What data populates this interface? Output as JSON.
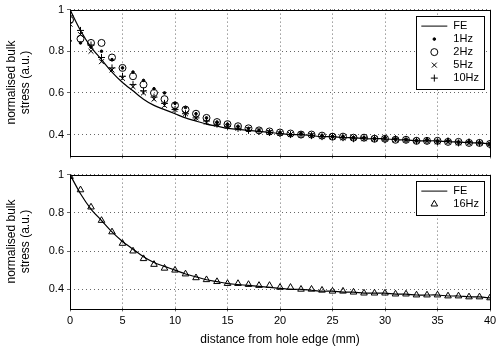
{
  "chart_data": [
    {
      "type": "scatter",
      "ylabel": "normalised bulk stress (a.u.)",
      "x": [
        0,
        1,
        2,
        3,
        4,
        5,
        6,
        7,
        8,
        9,
        10,
        11,
        12,
        13,
        14,
        15,
        16,
        17,
        18,
        19,
        20,
        21,
        22,
        23,
        24,
        25,
        26,
        27,
        28,
        29,
        30,
        31,
        32,
        33,
        34,
        35,
        36,
        37,
        38,
        39,
        40
      ],
      "series": [
        {
          "name": "FE",
          "type": "line",
          "color": "#000000",
          "line_style": "solid",
          "values": [
            1.0,
            0.9,
            0.82,
            0.76,
            0.7,
            0.65,
            0.61,
            0.57,
            0.54,
            0.52,
            0.5,
            0.48,
            0.465,
            0.45,
            0.44,
            0.43,
            0.425,
            0.42,
            0.415,
            0.41,
            0.405,
            0.4,
            0.4,
            0.395,
            0.39,
            0.39,
            0.385,
            0.385,
            0.38,
            0.38,
            0.38,
            0.375,
            0.375,
            0.37,
            0.37,
            0.37,
            0.365,
            0.365,
            0.36,
            0.36,
            0.355
          ]
        },
        {
          "name": "1Hz",
          "type": "scatter",
          "color": "#000000",
          "marker": "dot",
          "values": [
            0.85,
            0.84,
            0.82,
            0.8,
            0.76,
            0.72,
            0.7,
            0.66,
            0.62,
            0.6,
            0.55,
            0.53,
            0.5,
            0.48,
            0.46,
            0.45,
            0.44,
            0.43,
            0.42,
            0.415,
            0.41,
            0.4,
            0.405,
            0.4,
            0.395,
            0.39,
            0.39,
            0.385,
            0.385,
            0.38,
            0.385,
            0.38,
            0.375,
            0.37,
            0.375,
            0.37,
            0.37,
            0.365,
            0.365,
            0.36,
            0.355
          ]
        },
        {
          "name": "2Hz",
          "type": "scatter",
          "color": "#000000",
          "marker": "circle",
          "values": [
            0.95,
            0.86,
            0.84,
            0.84,
            0.77,
            0.72,
            0.68,
            0.64,
            0.6,
            0.57,
            0.54,
            0.52,
            0.5,
            0.48,
            0.46,
            0.45,
            0.44,
            0.43,
            0.42,
            0.415,
            0.41,
            0.405,
            0.4,
            0.4,
            0.395,
            0.39,
            0.39,
            0.385,
            0.385,
            0.38,
            0.38,
            0.375,
            0.375,
            0.37,
            0.37,
            0.37,
            0.365,
            0.365,
            0.36,
            0.36,
            0.355
          ]
        },
        {
          "name": "5Hz",
          "type": "scatter",
          "color": "#000000",
          "marker": "x",
          "values": [
            0.93,
            0.88,
            0.8,
            0.75,
            0.71,
            0.67,
            0.63,
            0.6,
            0.57,
            0.54,
            0.52,
            0.5,
            0.48,
            0.46,
            0.45,
            0.44,
            0.43,
            0.425,
            0.42,
            0.41,
            0.405,
            0.4,
            0.4,
            0.395,
            0.39,
            0.39,
            0.385,
            0.385,
            0.38,
            0.38,
            0.38,
            0.375,
            0.375,
            0.37,
            0.37,
            0.365,
            0.365,
            0.36,
            0.36,
            0.36,
            0.355
          ]
        },
        {
          "name": "10Hz",
          "type": "scatter",
          "color": "#000000",
          "marker": "plus",
          "values": [
            0.97,
            0.9,
            0.83,
            0.77,
            0.72,
            0.68,
            0.64,
            0.61,
            0.58,
            0.55,
            0.52,
            0.5,
            0.48,
            0.465,
            0.45,
            0.44,
            0.43,
            0.42,
            0.415,
            0.41,
            0.405,
            0.4,
            0.4,
            0.395,
            0.39,
            0.39,
            0.385,
            0.38,
            0.385,
            0.38,
            0.375,
            0.38,
            0.375,
            0.37,
            0.37,
            0.365,
            0.37,
            0.36,
            0.365,
            0.36,
            0.35
          ]
        }
      ],
      "xlim": [
        0,
        40
      ],
      "xticks": [
        0,
        5,
        10,
        15,
        20,
        25,
        30,
        35,
        40
      ],
      "ylim": [
        0.3,
        1
      ],
      "yticks": [
        0.4,
        0.6,
        0.8,
        1
      ],
      "grid": true,
      "legend": "upper right",
      "tick_labels": "y"
    },
    {
      "type": "scatter",
      "xlabel": "distance from hole edge (mm)",
      "ylabel": "normalised bulk stress (a.u.)",
      "x": [
        0,
        1,
        2,
        3,
        4,
        5,
        6,
        7,
        8,
        9,
        10,
        11,
        12,
        13,
        14,
        15,
        16,
        17,
        18,
        19,
        20,
        21,
        22,
        23,
        24,
        25,
        26,
        27,
        28,
        29,
        30,
        31,
        32,
        33,
        34,
        35,
        36,
        37,
        38,
        39,
        40
      ],
      "series": [
        {
          "name": "FE",
          "type": "line",
          "color": "#000000",
          "line_style": "solid",
          "values": [
            1.0,
            0.9,
            0.82,
            0.76,
            0.7,
            0.65,
            0.61,
            0.57,
            0.54,
            0.52,
            0.5,
            0.48,
            0.465,
            0.45,
            0.44,
            0.43,
            0.425,
            0.42,
            0.415,
            0.41,
            0.405,
            0.4,
            0.4,
            0.395,
            0.39,
            0.39,
            0.385,
            0.385,
            0.38,
            0.38,
            0.38,
            0.375,
            0.375,
            0.37,
            0.37,
            0.37,
            0.365,
            0.365,
            0.36,
            0.36,
            0.355
          ]
        },
        {
          "name": "16Hz",
          "type": "scatter",
          "color": "#000000",
          "marker": "triangle",
          "values": [
            0.99,
            0.92,
            0.83,
            0.76,
            0.7,
            0.64,
            0.6,
            0.56,
            0.53,
            0.51,
            0.5,
            0.48,
            0.46,
            0.45,
            0.44,
            0.43,
            0.43,
            0.425,
            0.42,
            0.42,
            0.41,
            0.41,
            0.4,
            0.4,
            0.395,
            0.39,
            0.39,
            0.385,
            0.38,
            0.38,
            0.38,
            0.375,
            0.375,
            0.37,
            0.37,
            0.37,
            0.365,
            0.365,
            0.36,
            0.36,
            0.355
          ]
        }
      ],
      "xlim": [
        0,
        40
      ],
      "xticks": [
        0,
        5,
        10,
        15,
        20,
        25,
        30,
        35,
        40
      ],
      "ylim": [
        0.3,
        1
      ],
      "yticks": [
        0.4,
        0.6,
        0.8,
        1
      ],
      "grid": true,
      "legend": "upper right"
    }
  ]
}
